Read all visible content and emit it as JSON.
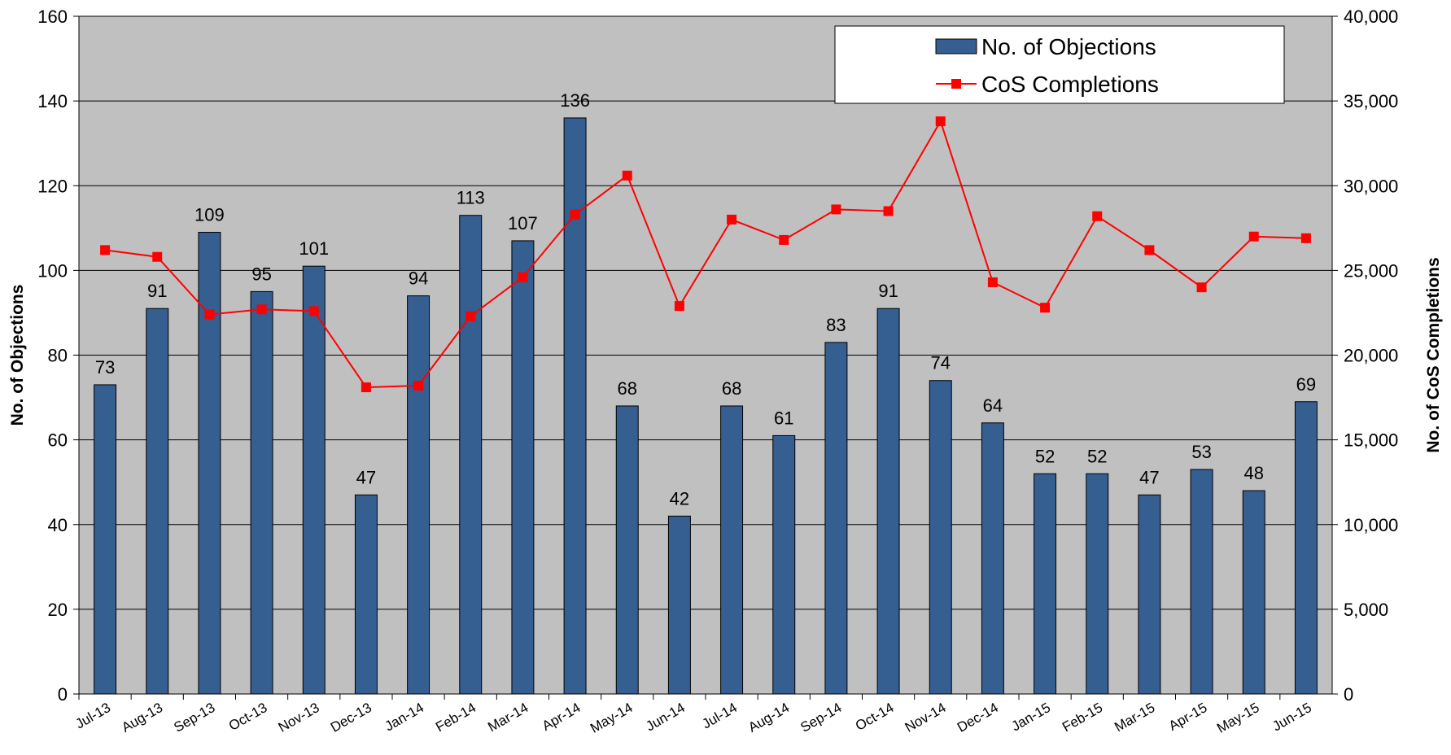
{
  "chart_data": {
    "type": "bar-line",
    "categories": [
      "Jul-13",
      "Aug-13",
      "Sep-13",
      "Oct-13",
      "Nov-13",
      "Dec-13",
      "Jan-14",
      "Feb-14",
      "Mar-14",
      "Apr-14",
      "May-14",
      "Jun-14",
      "Jul-14",
      "Aug-14",
      "Sep-14",
      "Oct-14",
      "Nov-14",
      "Dec-14",
      "Jan-15",
      "Feb-15",
      "Mar-15",
      "Apr-15",
      "May-15",
      "Jun-15"
    ],
    "series": [
      {
        "name": "No. of Objections",
        "type": "bar",
        "color": "#355e91",
        "axis": "y",
        "values": [
          73,
          91,
          109,
          95,
          101,
          47,
          94,
          113,
          107,
          136,
          68,
          42,
          68,
          61,
          83,
          91,
          74,
          64,
          52,
          52,
          47,
          53,
          48,
          69
        ]
      },
      {
        "name": "CoS Completions",
        "type": "line",
        "color": "#ff0000",
        "axis": "y2",
        "values": [
          26200,
          25800,
          22400,
          22700,
          22600,
          18100,
          18200,
          22300,
          24600,
          28300,
          30600,
          22900,
          28000,
          26800,
          28600,
          28500,
          33800,
          24300,
          22800,
          28200,
          26200,
          24000,
          27000,
          26900
        ]
      }
    ],
    "ylabel": "No. of Objections",
    "y2label": "No. of CoS Completions",
    "ylim": [
      0,
      160
    ],
    "yticks": [
      0,
      20,
      40,
      60,
      80,
      100,
      120,
      140,
      160
    ],
    "y2lim": [
      0,
      40000
    ],
    "y2ticks": [
      0,
      {
        "value": 5000,
        "label": "5,000"
      },
      {
        "value": 10000,
        "label": "10,000"
      },
      {
        "value": 15000,
        "label": "15,000"
      },
      {
        "value": 20000,
        "label": "20,000"
      },
      {
        "value": 25000,
        "label": "25,000"
      },
      {
        "value": 30000,
        "label": "30,000"
      },
      {
        "value": 35000,
        "label": "35,000"
      },
      {
        "value": 40000,
        "label": "40,000"
      }
    ],
    "grid": true,
    "legend": "upper right",
    "plot_background": "#c0c0c0"
  }
}
